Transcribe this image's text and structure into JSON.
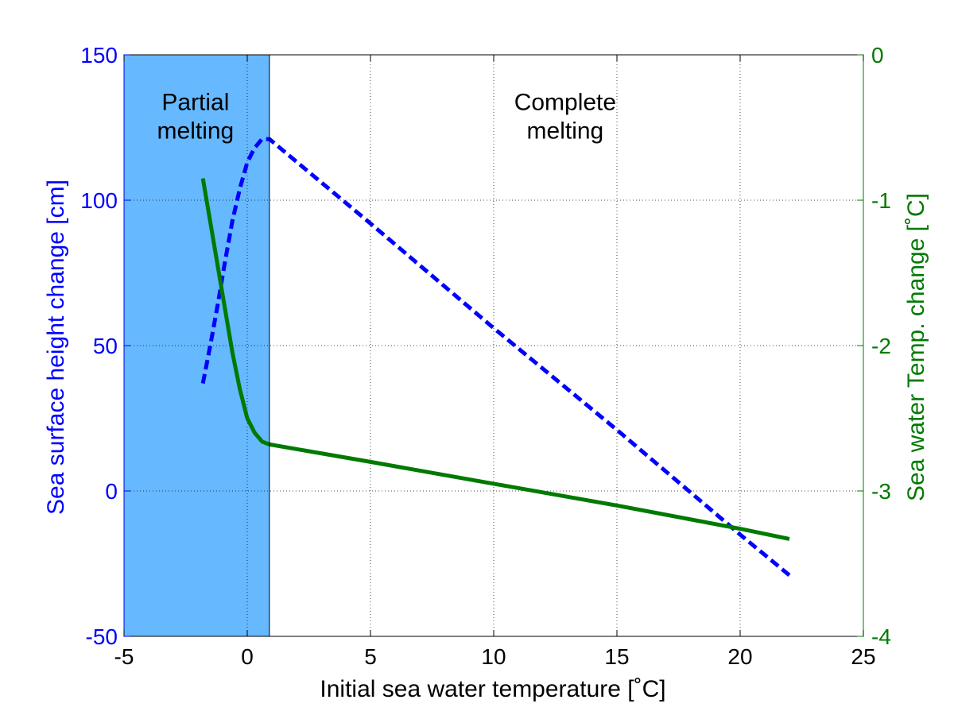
{
  "chart_data": {
    "type": "line",
    "xlabel": "Initial sea water temperature [˚C]",
    "ylabel_left": "Sea surface height change [cm]",
    "ylabel_right": "Sea water Temp. change [˚C]",
    "xlim": [
      -5,
      25
    ],
    "ylim_left": [
      -50,
      150
    ],
    "ylim_right": [
      -4,
      0
    ],
    "x_ticks": [
      -5,
      0,
      5,
      10,
      15,
      20,
      25
    ],
    "y_left_ticks": [
      -50,
      0,
      50,
      100,
      150
    ],
    "y_right_ticks": [
      -4,
      -3,
      -2,
      -1,
      0
    ],
    "x_tick_labels": [
      "-5",
      "0",
      "5",
      "10",
      "15",
      "20",
      "25"
    ],
    "y_left_tick_labels": [
      "-50",
      "0",
      "50",
      "100",
      "150"
    ],
    "y_right_tick_labels": [
      "-4",
      "-3",
      "-2",
      "-1",
      "0"
    ],
    "grid": "dotted",
    "shaded_region": {
      "x": [
        -5,
        0.9
      ],
      "color": "#66b8ff"
    },
    "annotations": [
      {
        "text": [
          "Partial",
          "melting"
        ],
        "x": -2.1,
        "y": 131
      },
      {
        "text": [
          "Complete",
          "melting"
        ],
        "x": 12.9,
        "y": 131
      }
    ],
    "series": [
      {
        "axis": "left",
        "style": "dashed",
        "color": "#0000ff",
        "x": [
          -1.8,
          -1.5,
          -1.2,
          -0.9,
          -0.6,
          -0.3,
          0.0,
          0.3,
          0.6,
          0.9,
          5,
          10,
          15,
          20,
          22
        ],
        "y": [
          37,
          50,
          64,
          79,
          93,
          104,
          113,
          118,
          121,
          121,
          92,
          56,
          21,
          -15,
          -29
        ]
      },
      {
        "axis": "right",
        "style": "solid",
        "color": "#007a00",
        "x": [
          -1.8,
          -1.5,
          -1.2,
          -0.9,
          -0.6,
          -0.3,
          0.0,
          0.3,
          0.6,
          0.9,
          5,
          10,
          15,
          20,
          22
        ],
        "y": [
          -0.85,
          -1.15,
          -1.45,
          -1.75,
          -2.05,
          -2.3,
          -2.5,
          -2.6,
          -2.66,
          -2.68,
          -2.8,
          -2.95,
          -3.1,
          -3.26,
          -3.33
        ]
      }
    ]
  }
}
